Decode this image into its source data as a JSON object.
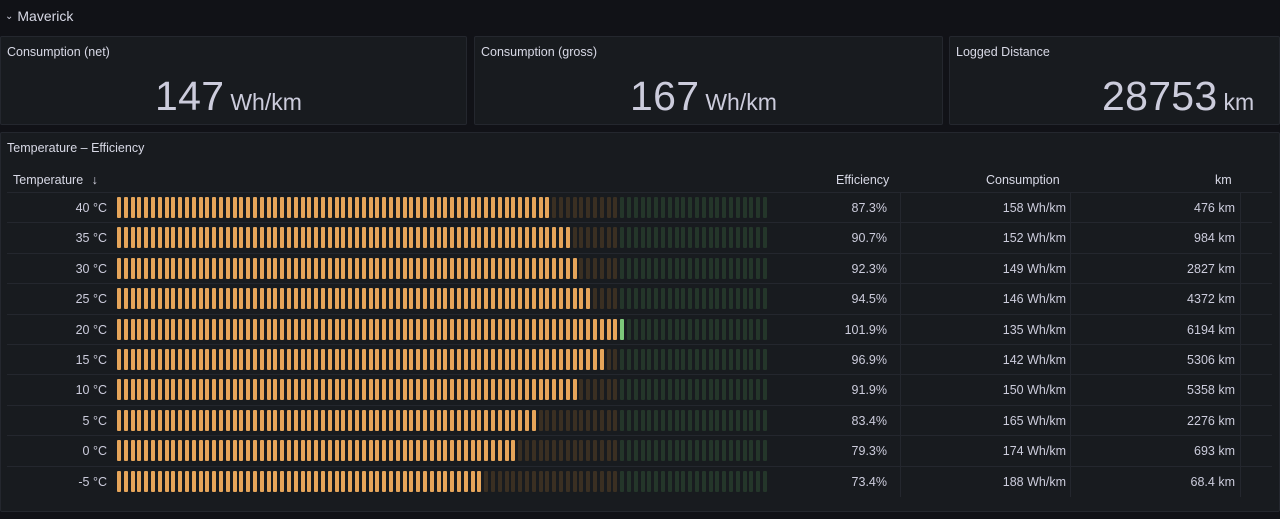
{
  "row": {
    "chevron_icon": "chevron-down-icon",
    "title": "Maverick"
  },
  "stats": [
    {
      "title": "Consumption (net)",
      "value": "147",
      "unit": "Wh/km"
    },
    {
      "title": "Consumption (gross)",
      "value": "167",
      "unit": "Wh/km"
    },
    {
      "title": "Logged Distance",
      "value": "28753",
      "unit": "km"
    }
  ],
  "table": {
    "title": "Temperature – Efficiency",
    "columns": {
      "temperature": "Temperature",
      "sort_icon": "arrow-down-icon",
      "efficiency": "Efficiency",
      "consumption": "Consumption",
      "km": "km"
    },
    "colors": {
      "bar_fill": "#e6a55a",
      "bar_empty": "#3a2f22",
      "over_fill": "#7dc97a",
      "over_empty": "#24362a"
    },
    "rows": [
      {
        "temperature": "40 °C",
        "efficiency_pct": 87.3,
        "efficiency": "87.3%",
        "consumption": "158 Wh/km",
        "km": "476 km"
      },
      {
        "temperature": "35 °C",
        "efficiency_pct": 90.7,
        "efficiency": "90.7%",
        "consumption": "152 Wh/km",
        "km": "984 km"
      },
      {
        "temperature": "30 °C",
        "efficiency_pct": 92.3,
        "efficiency": "92.3%",
        "consumption": "149 Wh/km",
        "km": "2827 km"
      },
      {
        "temperature": "25 °C",
        "efficiency_pct": 94.5,
        "efficiency": "94.5%",
        "consumption": "146 Wh/km",
        "km": "4372 km"
      },
      {
        "temperature": "20 °C",
        "efficiency_pct": 101.9,
        "efficiency": "101.9%",
        "consumption": "135 Wh/km",
        "km": "6194 km"
      },
      {
        "temperature": "15 °C",
        "efficiency_pct": 96.9,
        "efficiency": "96.9%",
        "consumption": "142 Wh/km",
        "km": "5306 km"
      },
      {
        "temperature": "10 °C",
        "efficiency_pct": 91.9,
        "efficiency": "91.9%",
        "consumption": "150 Wh/km",
        "km": "5358 km"
      },
      {
        "temperature": "5 °C",
        "efficiency_pct": 83.4,
        "efficiency": "83.4%",
        "consumption": "165 Wh/km",
        "km": "2276 km"
      },
      {
        "temperature": "0 °C",
        "efficiency_pct": 79.3,
        "efficiency": "79.3%",
        "consumption": "174 Wh/km",
        "km": "693 km"
      },
      {
        "temperature": "-5 °C",
        "efficiency_pct": 73.4,
        "efficiency": "73.4%",
        "consumption": "188 Wh/km",
        "km": "68.4 km"
      }
    ]
  }
}
